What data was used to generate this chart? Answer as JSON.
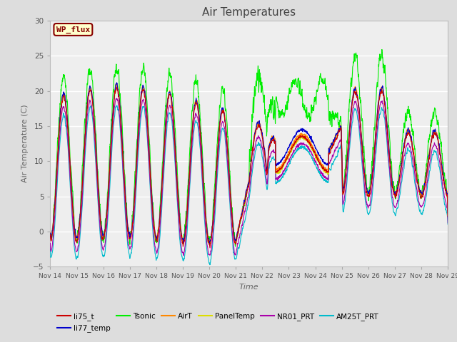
{
  "title": "Air Temperatures",
  "xlabel": "Time",
  "ylabel": "Air Temperature (C)",
  "ylim": [
    -5,
    30
  ],
  "xlim": [
    0,
    15
  ],
  "xtick_labels": [
    "Nov 14",
    "Nov 15",
    "Nov 16",
    "Nov 17",
    "Nov 18",
    "Nov 19",
    "Nov 20",
    "Nov 21",
    "Nov 22",
    "Nov 23",
    "Nov 24",
    "Nov 25",
    "Nov 26",
    "Nov 27",
    "Nov 28",
    "Nov 29"
  ],
  "series": {
    "li75_t": {
      "color": "#cc0000",
      "lw": 0.8
    },
    "li77_temp": {
      "color": "#0000cc",
      "lw": 0.8
    },
    "Tsonic": {
      "color": "#00ee00",
      "lw": 0.8
    },
    "AirT": {
      "color": "#ff8800",
      "lw": 0.8
    },
    "PanelTemp": {
      "color": "#dddd00",
      "lw": 0.8
    },
    "NR01_PRT": {
      "color": "#aa00aa",
      "lw": 0.8
    },
    "AM25T_PRT": {
      "color": "#00bbcc",
      "lw": 0.8
    }
  },
  "legend_box_facecolor": "#ffffcc",
  "legend_box_edgecolor": "#880000",
  "legend_label": "WP_flux",
  "bg_color": "#dddddd",
  "plot_bg_color": "#eeeeee",
  "grid_color": "#ffffff",
  "title_color": "#444444",
  "axis_label_color": "#666666"
}
